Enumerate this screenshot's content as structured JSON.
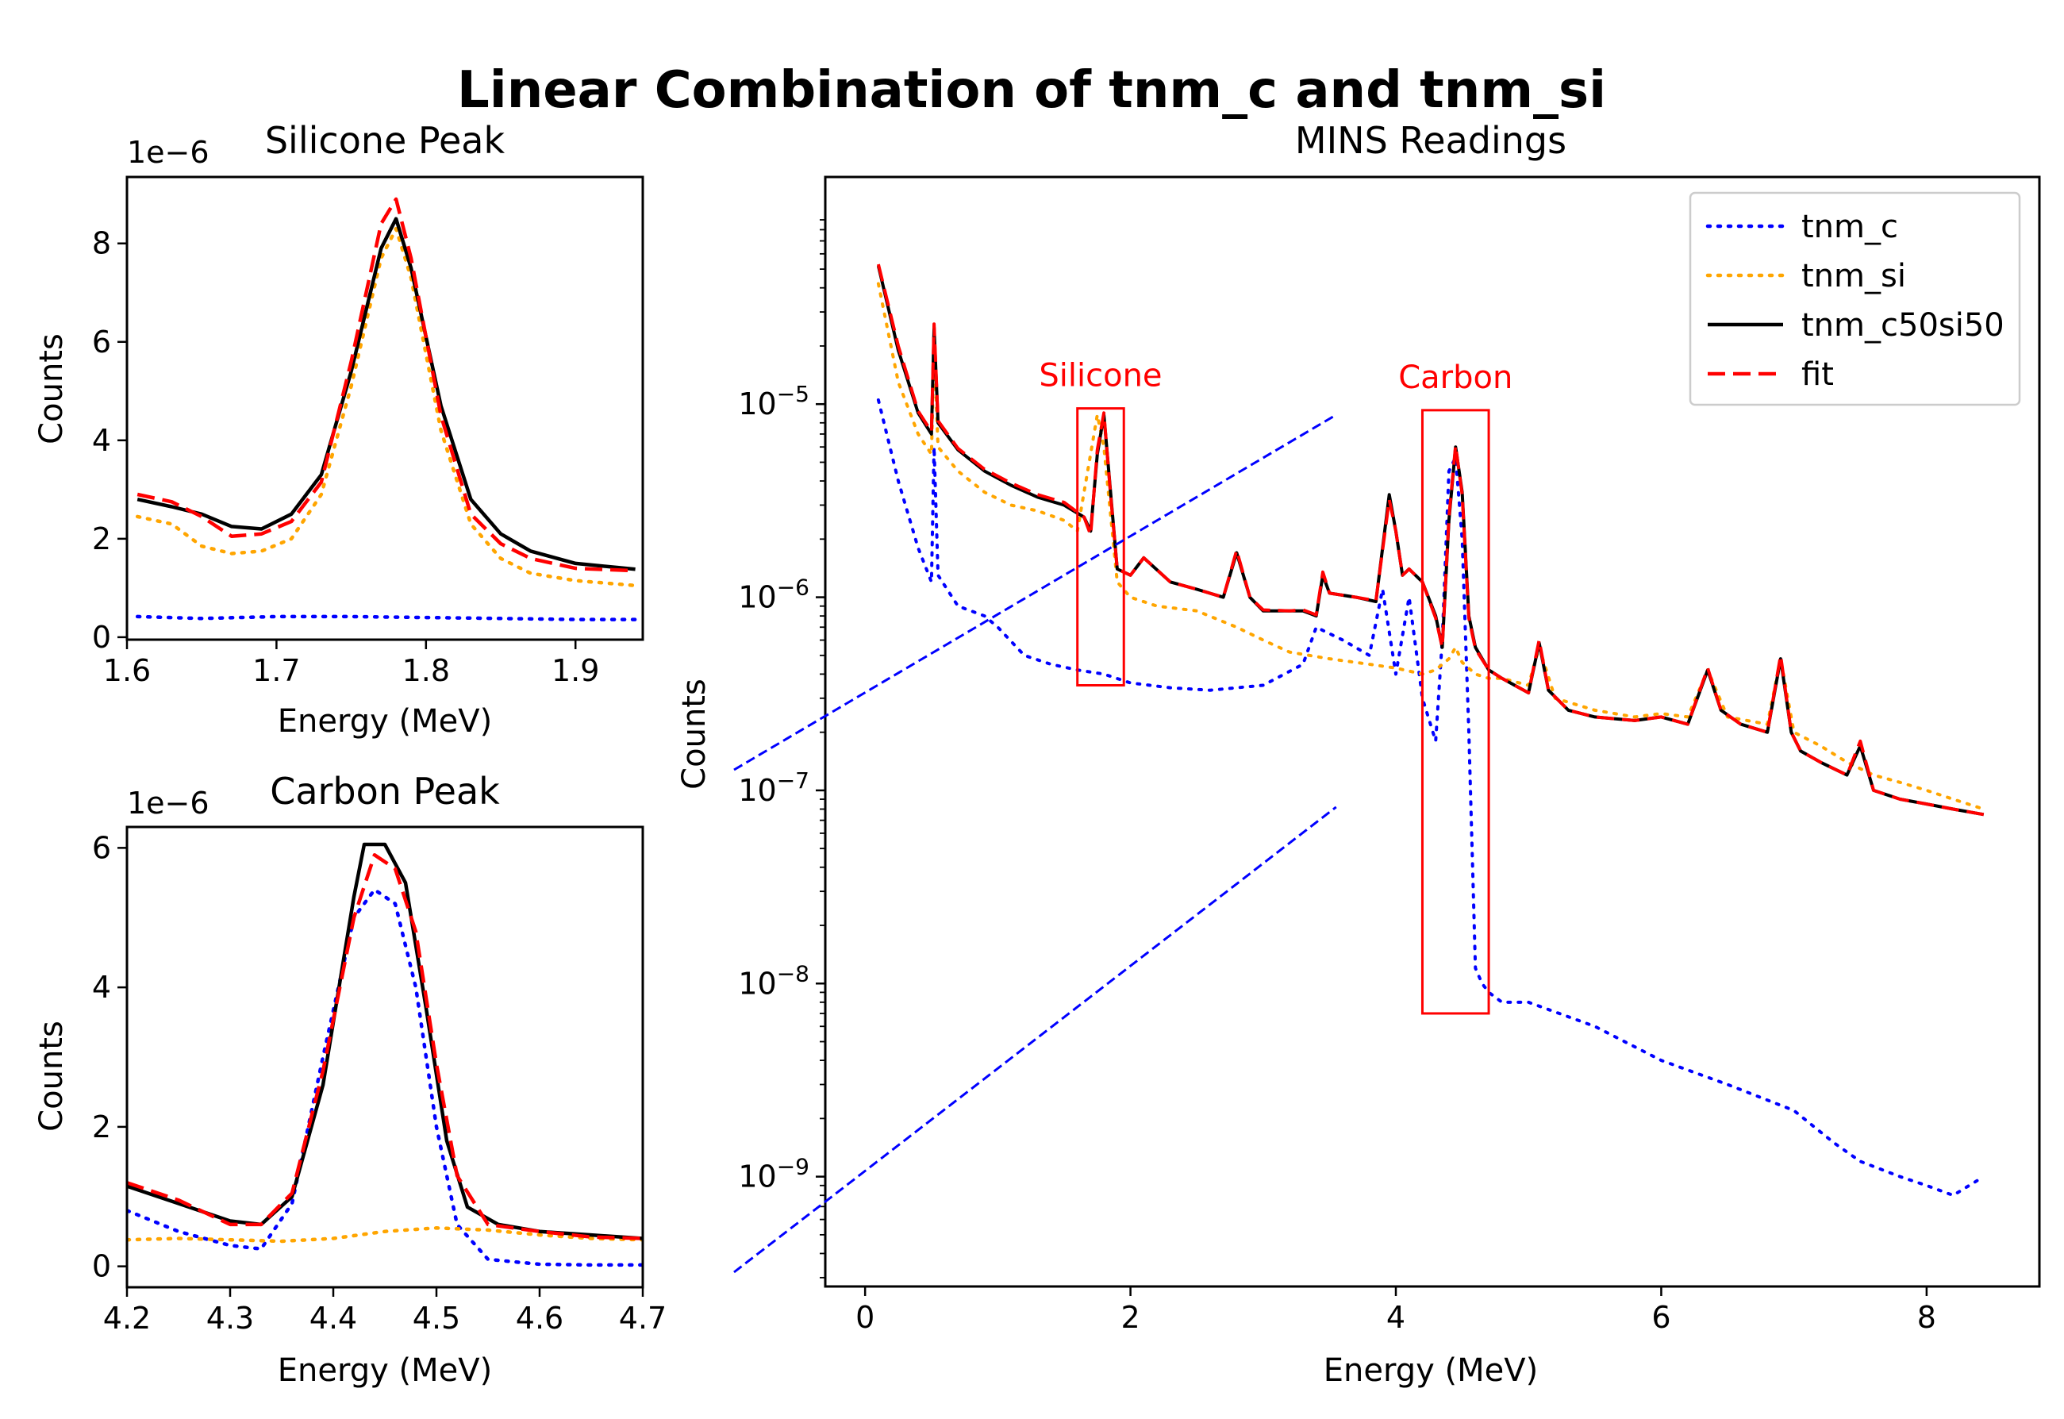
{
  "figure": {
    "title": "Linear Combination of tnm_c and tnm_si"
  },
  "colors": {
    "tnm_c": "#0000ff",
    "tnm_si": "#ffa500",
    "tnm_c50si50": "#000000",
    "fit": "#ff0000",
    "annotation": "#ff0000"
  },
  "legend": [
    {
      "label": "tnm_c",
      "style": "dotted",
      "color": "#0000ff"
    },
    {
      "label": "tnm_si",
      "style": "dotted",
      "color": "#ffa500"
    },
    {
      "label": "tnm_c50si50",
      "style": "solid",
      "color": "#000000"
    },
    {
      "label": "fit",
      "style": "dashed",
      "color": "#ff0000"
    }
  ],
  "chart_data": [
    {
      "type": "line",
      "title": "Silicone Peak",
      "xlabel": "Energy (MeV)",
      "ylabel": "Counts",
      "y_offset_label": "1e−6",
      "xlim": [
        1.6,
        1.945
      ],
      "ylim": [
        -0.05,
        9.35
      ],
      "xticks": [
        "1.6",
        "1.7",
        "1.8",
        "1.9"
      ],
      "yticks": [
        "0",
        "2",
        "4",
        "6",
        "8"
      ],
      "series": [
        {
          "name": "tnm_c",
          "x": [
            1.607,
            1.65,
            1.7,
            1.75,
            1.8,
            1.85,
            1.9,
            1.94
          ],
          "y": [
            0.42,
            0.38,
            0.42,
            0.42,
            0.4,
            0.38,
            0.36,
            0.36
          ]
        },
        {
          "name": "tnm_si",
          "x": [
            1.607,
            1.63,
            1.65,
            1.67,
            1.69,
            1.71,
            1.73,
            1.75,
            1.77,
            1.78,
            1.79,
            1.81,
            1.83,
            1.85,
            1.87,
            1.9,
            1.94
          ],
          "y": [
            2.45,
            2.3,
            1.85,
            1.7,
            1.75,
            2.0,
            2.9,
            5.1,
            7.7,
            8.3,
            7.3,
            4.2,
            2.3,
            1.6,
            1.3,
            1.15,
            1.05
          ]
        },
        {
          "name": "tnm_c50si50",
          "x": [
            1.607,
            1.63,
            1.65,
            1.67,
            1.69,
            1.71,
            1.73,
            1.75,
            1.77,
            1.78,
            1.79,
            1.81,
            1.83,
            1.85,
            1.87,
            1.9,
            1.94
          ],
          "y": [
            2.8,
            2.65,
            2.5,
            2.25,
            2.2,
            2.5,
            3.3,
            5.4,
            7.9,
            8.5,
            7.5,
            4.7,
            2.8,
            2.1,
            1.75,
            1.5,
            1.38
          ]
        },
        {
          "name": "fit",
          "x": [
            1.607,
            1.63,
            1.65,
            1.67,
            1.69,
            1.71,
            1.73,
            1.75,
            1.77,
            1.78,
            1.79,
            1.81,
            1.83,
            1.85,
            1.87,
            1.9,
            1.94
          ],
          "y": [
            2.9,
            2.75,
            2.45,
            2.05,
            2.1,
            2.35,
            3.15,
            5.6,
            8.4,
            8.9,
            7.7,
            4.5,
            2.5,
            1.9,
            1.6,
            1.4,
            1.35
          ]
        }
      ]
    },
    {
      "type": "line",
      "title": "Carbon Peak",
      "xlabel": "Energy (MeV)",
      "ylabel": "Counts",
      "y_offset_label": "1e−6",
      "xlim": [
        4.2,
        4.7
      ],
      "ylim": [
        -0.3,
        6.3
      ],
      "xticks": [
        "4.2",
        "4.3",
        "4.4",
        "4.5",
        "4.6",
        "4.7"
      ],
      "yticks": [
        "0",
        "2",
        "4",
        "6"
      ],
      "series": [
        {
          "name": "tnm_c",
          "x": [
            4.2,
            4.25,
            4.3,
            4.33,
            4.36,
            4.39,
            4.42,
            4.44,
            4.46,
            4.48,
            4.5,
            4.52,
            4.55,
            4.6,
            4.65,
            4.7
          ],
          "y": [
            0.8,
            0.5,
            0.3,
            0.25,
            0.9,
            3.0,
            5.0,
            5.4,
            5.2,
            4.0,
            2.0,
            0.6,
            0.1,
            0.03,
            0.02,
            0.02
          ]
        },
        {
          "name": "tnm_si",
          "x": [
            4.2,
            4.25,
            4.3,
            4.35,
            4.4,
            4.45,
            4.5,
            4.55,
            4.6,
            4.65,
            4.7
          ],
          "y": [
            0.38,
            0.4,
            0.38,
            0.36,
            0.4,
            0.5,
            0.55,
            0.52,
            0.45,
            0.4,
            0.38
          ]
        },
        {
          "name": "tnm_c50si50",
          "x": [
            4.2,
            4.25,
            4.3,
            4.33,
            4.36,
            4.39,
            4.42,
            4.43,
            4.45,
            4.47,
            4.49,
            4.51,
            4.53,
            4.56,
            4.6,
            4.65,
            4.7
          ],
          "y": [
            1.15,
            0.9,
            0.65,
            0.6,
            1.0,
            2.6,
            5.3,
            6.05,
            6.05,
            5.5,
            3.7,
            1.8,
            0.85,
            0.6,
            0.5,
            0.45,
            0.4
          ]
        },
        {
          "name": "fit",
          "x": [
            4.2,
            4.25,
            4.3,
            4.33,
            4.36,
            4.39,
            4.42,
            4.44,
            4.46,
            4.48,
            4.5,
            4.52,
            4.55,
            4.6,
            4.65,
            4.7
          ],
          "y": [
            1.2,
            0.95,
            0.6,
            0.6,
            1.05,
            2.8,
            5.0,
            5.9,
            5.7,
            4.8,
            2.9,
            1.3,
            0.6,
            0.5,
            0.42,
            0.4
          ]
        }
      ]
    },
    {
      "type": "line",
      "title": "MINS Readings",
      "xlabel": "Energy (MeV)",
      "ylabel": "Counts",
      "yscale": "log",
      "xlim": [
        -0.3,
        8.85
      ],
      "ylim": [
        2.7e-10,
        0.00015
      ],
      "xticks": [
        "0",
        "2",
        "4",
        "6",
        "8"
      ],
      "yticks": [
        "10−9",
        "10−8",
        "10−7",
        "10−6",
        "10−5"
      ],
      "legend_position": "upper right",
      "annotations": [
        {
          "label": "Silicone",
          "box_x": [
            1.6,
            1.95
          ],
          "box_y": [
            3.5e-07,
            9.5e-06
          ]
        },
        {
          "label": "Carbon",
          "box_x": [
            4.2,
            4.7
          ],
          "box_y": [
            7e-09,
            9.3e-06
          ]
        }
      ],
      "series": [
        {
          "name": "tnm_c",
          "x": [
            0.1,
            0.25,
            0.4,
            0.5,
            0.52,
            0.55,
            0.7,
            0.9,
            1.0,
            1.2,
            1.4,
            1.6,
            1.8,
            2.0,
            2.3,
            2.6,
            3.0,
            3.3,
            3.4,
            3.6,
            3.8,
            3.9,
            4.0,
            4.1,
            4.2,
            4.3,
            4.35,
            4.4,
            4.45,
            4.5,
            4.55,
            4.6,
            4.65,
            4.7,
            4.8,
            5.0,
            5.5,
            6.0,
            6.5,
            7.0,
            7.3,
            7.5,
            7.8,
            8.0,
            8.2,
            8.43
          ],
          "y": [
            1.05e-05,
            4e-06,
            1.8e-06,
            1.2e-06,
            6e-06,
            1.3e-06,
            9e-07,
            8e-07,
            7e-07,
            5e-07,
            4.5e-07,
            4.2e-07,
            4e-07,
            3.6e-07,
            3.4e-07,
            3.3e-07,
            3.5e-07,
            4.5e-07,
            7e-07,
            6e-07,
            5e-07,
            1.1e-06,
            4e-07,
            1e-06,
            3e-07,
            1.8e-07,
            6e-07,
            4.5e-06,
            5.3e-06,
            2e-06,
            2e-07,
            1.2e-08,
            1e-08,
            9e-09,
            8e-09,
            8e-09,
            6e-09,
            4e-09,
            3e-09,
            2.2e-09,
            1.5e-09,
            1.2e-09,
            1e-09,
            9e-10,
            8e-10,
            1e-09
          ]
        },
        {
          "name": "tnm_si",
          "x": [
            0.1,
            0.25,
            0.4,
            0.5,
            0.52,
            0.55,
            0.7,
            0.9,
            1.1,
            1.3,
            1.5,
            1.6,
            1.75,
            1.8,
            1.9,
            2.0,
            2.2,
            2.5,
            2.8,
            3.0,
            3.2,
            3.5,
            3.8,
            4.0,
            4.2,
            4.3,
            4.4,
            4.45,
            4.5,
            4.6,
            4.7,
            4.8,
            5.0,
            5.08,
            5.2,
            5.5,
            5.8,
            6.0,
            6.2,
            6.35,
            6.5,
            6.8,
            6.9,
            7.0,
            7.2,
            7.4,
            7.6,
            7.8,
            8.0,
            8.2,
            8.43
          ],
          "y": [
            4.2e-05,
            1.3e-05,
            7e-06,
            5.5e-06,
            2e-05,
            6e-06,
            4.5e-06,
            3.5e-06,
            3e-06,
            2.8e-06,
            2.5e-06,
            2.2e-06,
            8.8e-06,
            6e-06,
            1.2e-06,
            1e-06,
            9e-07,
            8.5e-07,
            7e-07,
            6e-07,
            5.2e-07,
            4.8e-07,
            4.5e-07,
            4.3e-07,
            4e-07,
            4.2e-07,
            4.8e-07,
            5.5e-07,
            4.6e-07,
            4e-07,
            3.8e-07,
            3.8e-07,
            3.5e-07,
            5.5e-07,
            3e-07,
            2.6e-07,
            2.4e-07,
            2.5e-07,
            2.4e-07,
            4.2e-07,
            2.4e-07,
            2.2e-07,
            4.8e-07,
            2e-07,
            1.7e-07,
            1.4e-07,
            1.2e-07,
            1.1e-07,
            1e-07,
            9e-08,
            8e-08
          ]
        },
        {
          "name": "tnm_c50si50",
          "x": [
            0.1,
            0.25,
            0.4,
            0.5,
            0.52,
            0.55,
            0.7,
            0.9,
            1.1,
            1.3,
            1.5,
            1.65,
            1.7,
            1.75,
            1.8,
            1.85,
            1.9,
            2.0,
            2.1,
            2.3,
            2.5,
            2.7,
            2.8,
            2.9,
            3.0,
            3.2,
            3.3,
            3.4,
            3.45,
            3.5,
            3.7,
            3.85,
            3.95,
            4.0,
            4.05,
            4.1,
            4.2,
            4.3,
            4.35,
            4.4,
            4.45,
            4.5,
            4.55,
            4.6,
            4.7,
            4.8,
            5.0,
            5.08,
            5.15,
            5.3,
            5.5,
            5.8,
            6.0,
            6.2,
            6.35,
            6.45,
            6.6,
            6.8,
            6.9,
            6.98,
            7.05,
            7.2,
            7.4,
            7.5,
            7.6,
            7.8,
            8.0,
            8.2,
            8.43
          ],
          "y": [
            5.2e-05,
            1.9e-05,
            9e-06,
            7e-06,
            2.5e-05,
            8e-06,
            5.8e-06,
            4.5e-06,
            3.8e-06,
            3.3e-06,
            3e-06,
            2.6e-06,
            2.2e-06,
            5.5e-06,
            8.8e-06,
            3.5e-06,
            1.4e-06,
            1.3e-06,
            1.6e-06,
            1.2e-06,
            1.1e-06,
            1e-06,
            1.7e-06,
            1e-06,
            8.5e-07,
            8.5e-07,
            8.5e-07,
            8e-07,
            1.3e-06,
            1.05e-06,
            1e-06,
            9.5e-07,
            3.4e-06,
            2.2e-06,
            1.3e-06,
            1.4e-06,
            1.2e-06,
            8e-07,
            5.5e-07,
            2.5e-06,
            6e-06,
            3.5e-06,
            8e-07,
            5.5e-07,
            4.2e-07,
            3.8e-07,
            3.2e-07,
            5.8e-07,
            3.3e-07,
            2.6e-07,
            2.4e-07,
            2.3e-07,
            2.4e-07,
            2.2e-07,
            4.2e-07,
            2.6e-07,
            2.2e-07,
            2e-07,
            4.8e-07,
            2e-07,
            1.6e-07,
            1.4e-07,
            1.2e-07,
            1.7e-07,
            1e-07,
            9e-08,
            8.5e-08,
            8e-08,
            7.5e-08
          ]
        },
        {
          "name": "fit",
          "x": [
            0.1,
            0.25,
            0.4,
            0.5,
            0.52,
            0.55,
            0.7,
            0.9,
            1.1,
            1.3,
            1.5,
            1.65,
            1.7,
            1.75,
            1.8,
            1.85,
            1.9,
            2.0,
            2.1,
            2.3,
            2.5,
            2.7,
            2.8,
            2.9,
            3.0,
            3.2,
            3.3,
            3.4,
            3.45,
            3.5,
            3.7,
            3.85,
            3.95,
            4.0,
            4.05,
            4.1,
            4.2,
            4.3,
            4.35,
            4.4,
            4.45,
            4.5,
            4.55,
            4.6,
            4.7,
            4.8,
            5.0,
            5.08,
            5.15,
            5.3,
            5.5,
            5.8,
            6.0,
            6.2,
            6.35,
            6.45,
            6.6,
            6.8,
            6.9,
            6.98,
            7.05,
            7.2,
            7.4,
            7.5,
            7.6,
            7.8,
            8.0,
            8.2,
            8.43
          ],
          "y": [
            5.3e-05,
            2e-05,
            9.2e-06,
            7.2e-06,
            2.6e-05,
            8.2e-06,
            5.9e-06,
            4.6e-06,
            3.9e-06,
            3.4e-06,
            3.1e-06,
            2.6e-06,
            2.1e-06,
            5.8e-06,
            9e-06,
            3.4e-06,
            1.4e-06,
            1.3e-06,
            1.6e-06,
            1.2e-06,
            1.1e-06,
            1e-06,
            1.75e-06,
            1e-06,
            8.6e-07,
            8.5e-07,
            8.6e-07,
            8.1e-07,
            1.35e-06,
            1.05e-06,
            1e-06,
            9.6e-07,
            3.2e-06,
            2.2e-06,
            1.3e-06,
            1.4e-06,
            1.2e-06,
            7.8e-07,
            5.5e-07,
            2.6e-06,
            6.1e-06,
            3.4e-06,
            7.8e-07,
            5.4e-07,
            4.2e-07,
            3.8e-07,
            3.2e-07,
            6e-07,
            3.3e-07,
            2.6e-07,
            2.4e-07,
            2.3e-07,
            2.4e-07,
            2.2e-07,
            4.3e-07,
            2.6e-07,
            2.2e-07,
            2e-07,
            5e-07,
            2e-07,
            1.6e-07,
            1.4e-07,
            1.2e-07,
            1.8e-07,
            1e-07,
            9e-08,
            8.5e-08,
            8e-08,
            7.5e-08
          ]
        }
      ]
    }
  ]
}
